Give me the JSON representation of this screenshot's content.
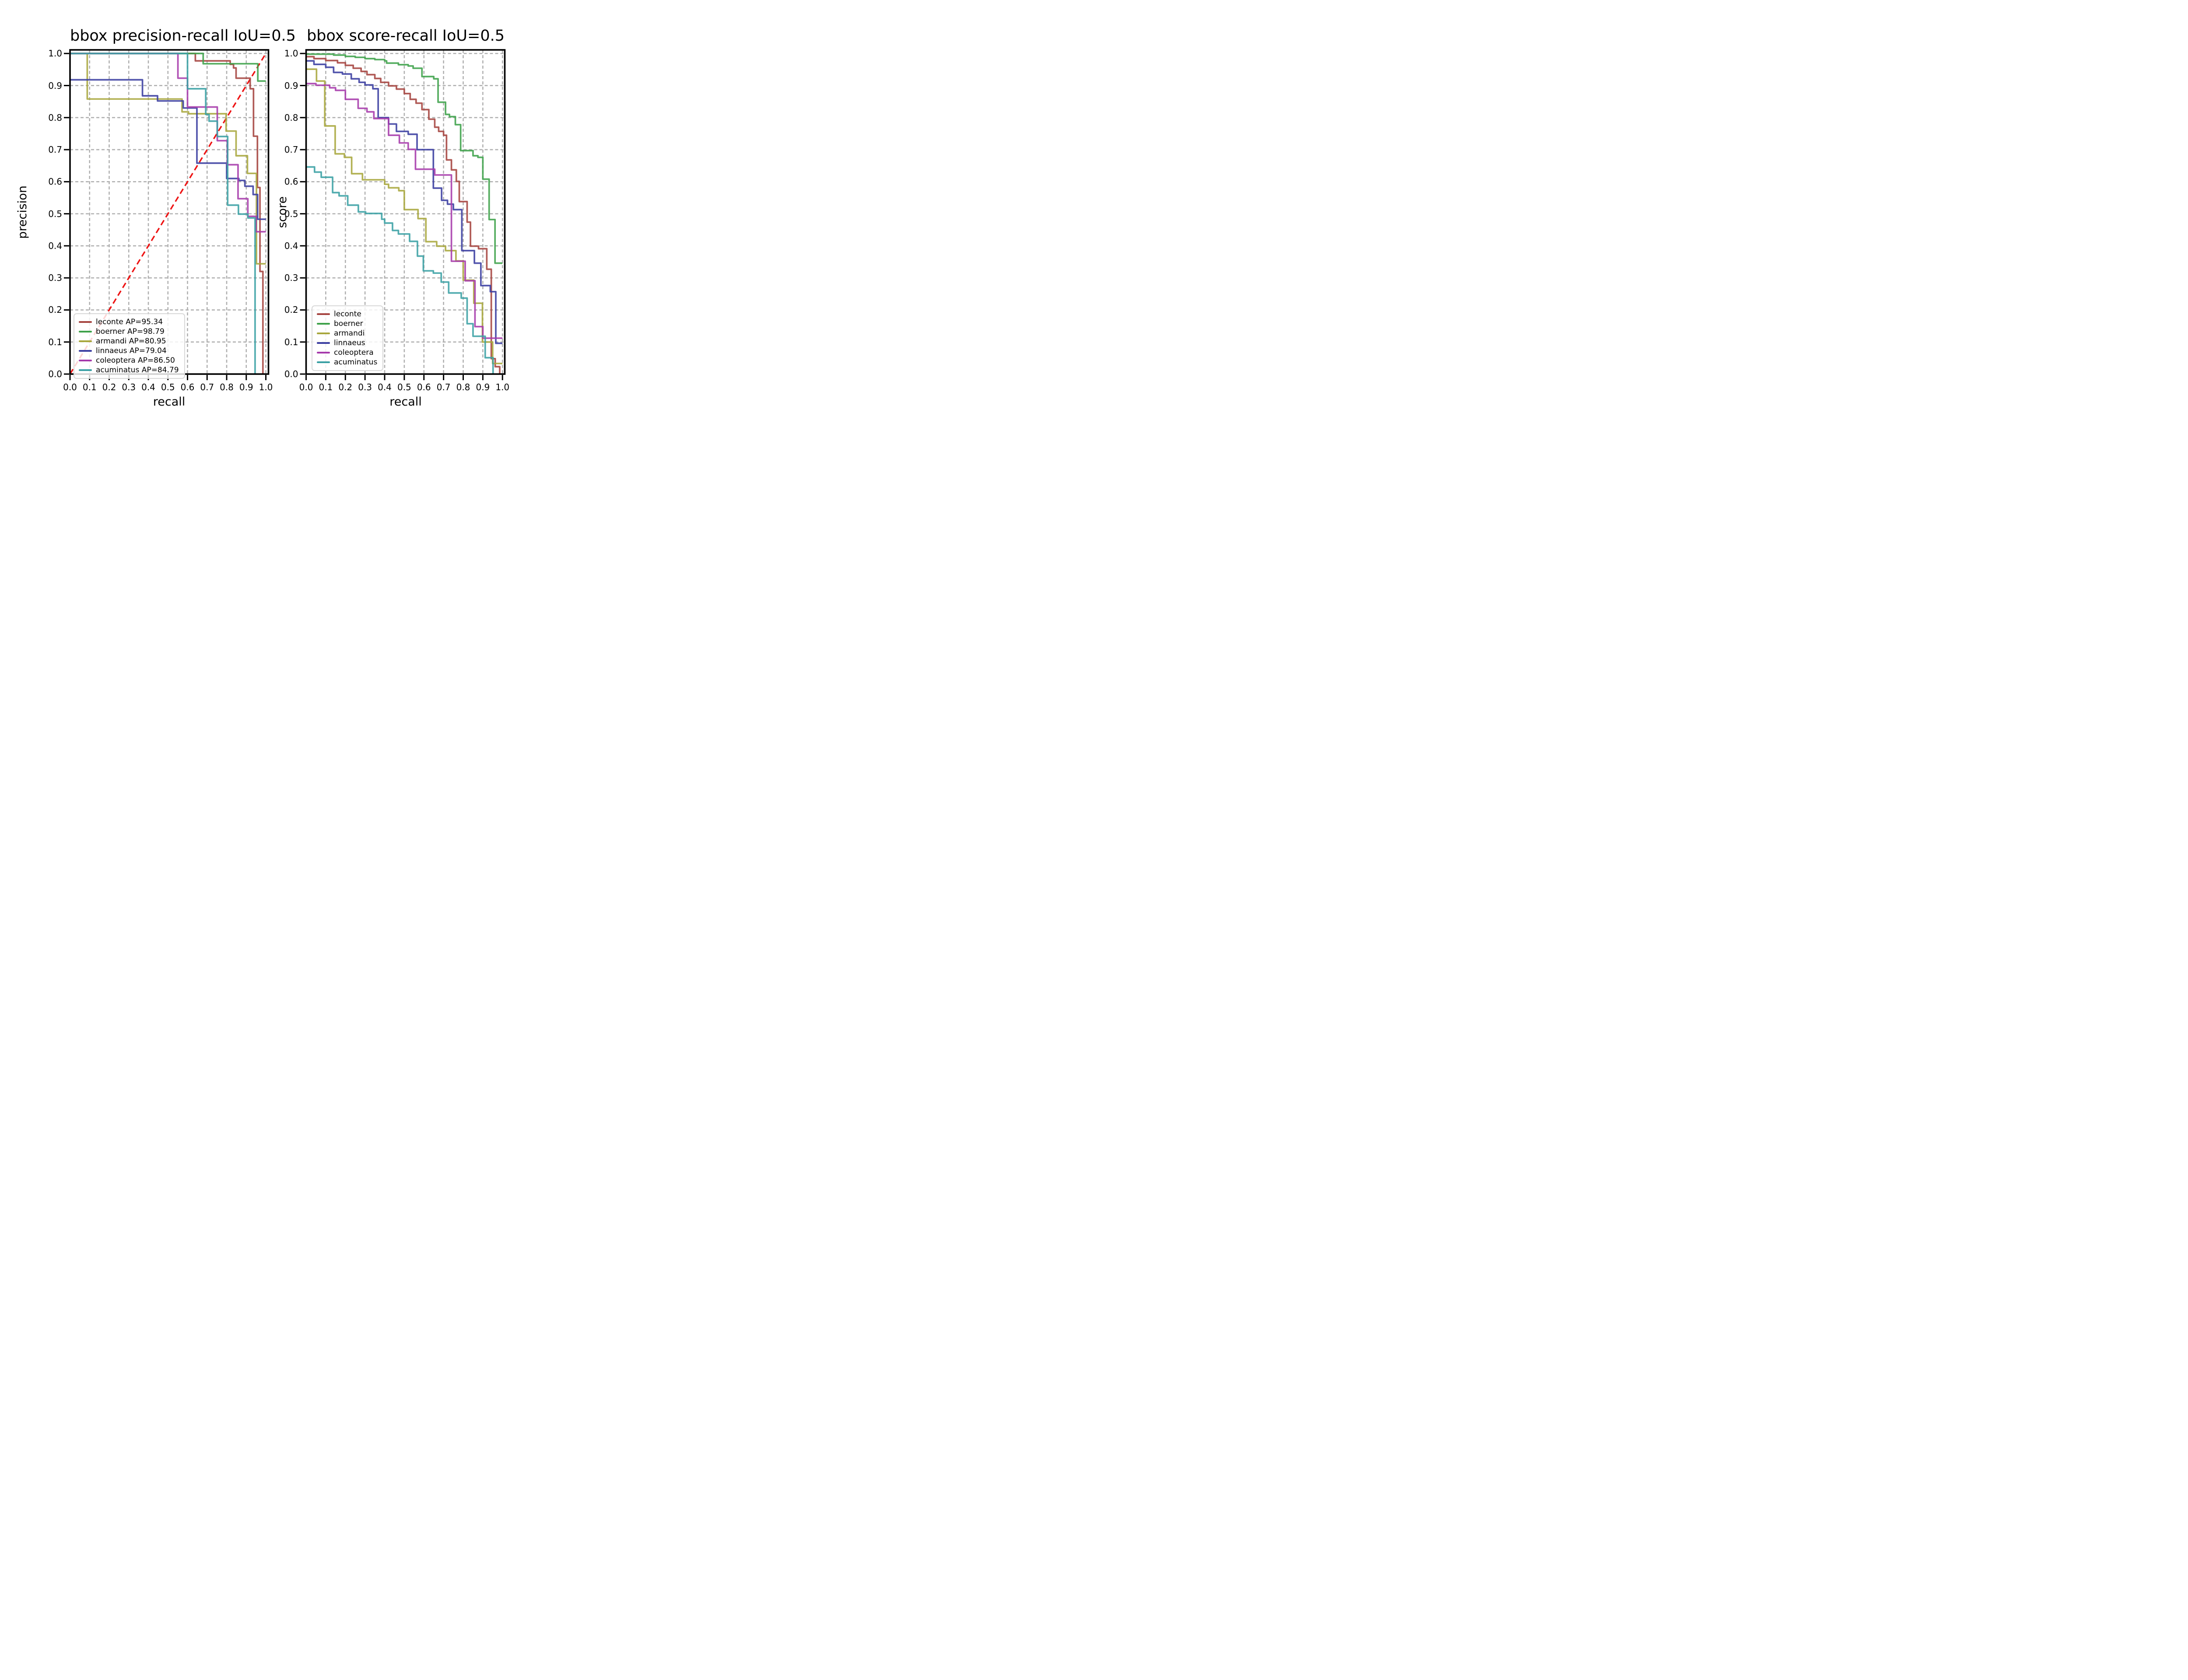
{
  "figure": {
    "background": "#ffffff"
  },
  "colors": {
    "grid": "#b0b0b0",
    "axis": "#000000",
    "diagonal_red": "#ee1414",
    "legend_border": "#d8d8d8"
  },
  "chart_data": [
    {
      "type": "line",
      "title": "bbox precision-recall IoU=0.5",
      "xlabel": "recall",
      "ylabel": "precision",
      "xlim": [
        0,
        1.02
      ],
      "ylim": [
        0,
        1.02
      ],
      "xticks": [
        0.0,
        0.1,
        0.2,
        0.3,
        0.4,
        0.5,
        0.6,
        0.7,
        0.8,
        0.9,
        1.0
      ],
      "yticks": [
        0.0,
        0.1,
        0.2,
        0.3,
        0.4,
        0.5,
        0.6,
        0.7,
        0.8,
        0.9,
        1.0
      ],
      "grid": true,
      "legend_position": "lower left",
      "diagonal": {
        "from": [
          0,
          0
        ],
        "to": [
          1,
          1
        ],
        "color": "#ee1414",
        "style": "dashed"
      },
      "series": [
        {
          "name": "leconte",
          "label": "leconte AP=95.34",
          "ap": 95.34,
          "color": "#a5433f",
          "points": [
            [
              0,
              1.0
            ],
            [
              0.64,
              0.977
            ],
            [
              0.818,
              0.966
            ],
            [
              0.835,
              0.955
            ],
            [
              0.848,
              0.923
            ],
            [
              0.92,
              0.89
            ],
            [
              0.937,
              0.742
            ],
            [
              0.957,
              0.582
            ],
            [
              0.97,
              0.32
            ],
            [
              0.985,
              0.0
            ]
          ]
        },
        {
          "name": "boerner",
          "label": "boerner AP=98.79",
          "ap": 98.79,
          "color": "#3ea24a",
          "points": [
            [
              0,
              1.0
            ],
            [
              0.68,
              0.968
            ],
            [
              0.959,
              0.914
            ],
            [
              1.0,
              0.914
            ]
          ]
        },
        {
          "name": "armandi",
          "label": "armandi AP=80.95",
          "ap": 80.95,
          "color": "#a8a73d",
          "points": [
            [
              0,
              1.0
            ],
            [
              0.088,
              0.858
            ],
            [
              0.572,
              0.818
            ],
            [
              0.605,
              0.812
            ],
            [
              0.797,
              0.758
            ],
            [
              0.848,
              0.681
            ],
            [
              0.906,
              0.626
            ],
            [
              0.952,
              0.344
            ],
            [
              1.0,
              0.344
            ]
          ]
        },
        {
          "name": "linnaeus",
          "label": "linnaeus AP=79.04",
          "ap": 79.04,
          "color": "#3a3da0",
          "points": [
            [
              0,
              0.918
            ],
            [
              0.37,
              0.868
            ],
            [
              0.447,
              0.852
            ],
            [
              0.578,
              0.83
            ],
            [
              0.648,
              0.658
            ],
            [
              0.8,
              0.61
            ],
            [
              0.862,
              0.604
            ],
            [
              0.893,
              0.586
            ],
            [
              0.935,
              0.56
            ],
            [
              0.958,
              0.483
            ],
            [
              1.0,
              0.483
            ]
          ]
        },
        {
          "name": "coleoptera",
          "label": "coleoptera AP=86.50",
          "ap": 86.5,
          "color": "#a63aab",
          "points": [
            [
              0,
              1.0
            ],
            [
              0.551,
              0.923
            ],
            [
              0.6,
              0.833
            ],
            [
              0.752,
              0.728
            ],
            [
              0.803,
              0.653
            ],
            [
              0.858,
              0.547
            ],
            [
              0.908,
              0.492
            ],
            [
              0.95,
              0.444
            ],
            [
              1.0,
              0.444
            ]
          ]
        },
        {
          "name": "acuminatus",
          "label": "acuminatus AP=84.79",
          "ap": 84.79,
          "color": "#3aa0a4",
          "points": [
            [
              0,
              1.0
            ],
            [
              0.6,
              0.89
            ],
            [
              0.693,
              0.81
            ],
            [
              0.71,
              0.789
            ],
            [
              0.752,
              0.741
            ],
            [
              0.805,
              0.527
            ],
            [
              0.86,
              0.499
            ],
            [
              0.908,
              0.487
            ],
            [
              0.945,
              0.0
            ]
          ]
        }
      ]
    },
    {
      "type": "line",
      "title": "bbox score-recall IoU=0.5",
      "xlabel": "recall",
      "ylabel": "score",
      "xlim": [
        0,
        1.02
      ],
      "ylim": [
        0,
        1.02
      ],
      "xticks": [
        0.0,
        0.1,
        0.2,
        0.3,
        0.4,
        0.5,
        0.6,
        0.7,
        0.8,
        0.9,
        1.0
      ],
      "yticks": [
        0.0,
        0.1,
        0.2,
        0.3,
        0.4,
        0.5,
        0.6,
        0.7,
        0.8,
        0.9,
        1.0
      ],
      "grid": true,
      "legend_position": "lower left",
      "series": [
        {
          "name": "leconte",
          "label": "leconte",
          "color": "#a5433f",
          "points": [
            [
              0,
              0.99
            ],
            [
              0.04,
              0.984
            ],
            [
              0.1,
              0.978
            ],
            [
              0.16,
              0.971
            ],
            [
              0.2,
              0.963
            ],
            [
              0.24,
              0.954
            ],
            [
              0.28,
              0.944
            ],
            [
              0.31,
              0.934
            ],
            [
              0.35,
              0.922
            ],
            [
              0.38,
              0.91
            ],
            [
              0.42,
              0.899
            ],
            [
              0.46,
              0.889
            ],
            [
              0.5,
              0.875
            ],
            [
              0.53,
              0.857
            ],
            [
              0.56,
              0.845
            ],
            [
              0.59,
              0.825
            ],
            [
              0.625,
              0.795
            ],
            [
              0.655,
              0.77
            ],
            [
              0.675,
              0.757
            ],
            [
              0.7,
              0.745
            ],
            [
              0.715,
              0.668
            ],
            [
              0.74,
              0.637
            ],
            [
              0.765,
              0.601
            ],
            [
              0.78,
              0.538
            ],
            [
              0.82,
              0.474
            ],
            [
              0.837,
              0.399
            ],
            [
              0.878,
              0.391
            ],
            [
              0.92,
              0.327
            ],
            [
              0.943,
              0.048
            ],
            [
              0.963,
              0.023
            ],
            [
              0.986,
              0.0
            ]
          ]
        },
        {
          "name": "boerner",
          "label": "boerner",
          "color": "#3ea24a",
          "points": [
            [
              0,
              0.998
            ],
            [
              0.14,
              0.995
            ],
            [
              0.2,
              0.991
            ],
            [
              0.25,
              0.988
            ],
            [
              0.3,
              0.984
            ],
            [
              0.35,
              0.981
            ],
            [
              0.4,
              0.977
            ],
            [
              0.41,
              0.97
            ],
            [
              0.47,
              0.965
            ],
            [
              0.52,
              0.961
            ],
            [
              0.545,
              0.954
            ],
            [
              0.59,
              0.928
            ],
            [
              0.65,
              0.921
            ],
            [
              0.672,
              0.848
            ],
            [
              0.71,
              0.81
            ],
            [
              0.73,
              0.803
            ],
            [
              0.76,
              0.778
            ],
            [
              0.787,
              0.697
            ],
            [
              0.85,
              0.681
            ],
            [
              0.875,
              0.676
            ],
            [
              0.9,
              0.608
            ],
            [
              0.932,
              0.482
            ],
            [
              0.962,
              0.346
            ],
            [
              1.0,
              0.346
            ]
          ]
        },
        {
          "name": "armandi",
          "label": "armandi",
          "color": "#a8a73d",
          "points": [
            [
              0,
              0.951
            ],
            [
              0.053,
              0.914
            ],
            [
              0.095,
              0.774
            ],
            [
              0.148,
              0.687
            ],
            [
              0.195,
              0.676
            ],
            [
              0.232,
              0.625
            ],
            [
              0.287,
              0.606
            ],
            [
              0.4,
              0.592
            ],
            [
              0.42,
              0.581
            ],
            [
              0.472,
              0.572
            ],
            [
              0.5,
              0.513
            ],
            [
              0.57,
              0.485
            ],
            [
              0.61,
              0.413
            ],
            [
              0.665,
              0.399
            ],
            [
              0.71,
              0.385
            ],
            [
              0.763,
              0.353
            ],
            [
              0.8,
              0.293
            ],
            [
              0.854,
              0.221
            ],
            [
              0.898,
              0.1
            ],
            [
              0.95,
              0.033
            ],
            [
              1.0,
              0.033
            ]
          ]
        },
        {
          "name": "linnaeus",
          "label": "linnaeus",
          "color": "#3a3da0",
          "points": [
            [
              0,
              0.977
            ],
            [
              0.04,
              0.966
            ],
            [
              0.1,
              0.957
            ],
            [
              0.14,
              0.941
            ],
            [
              0.185,
              0.936
            ],
            [
              0.23,
              0.921
            ],
            [
              0.27,
              0.91
            ],
            [
              0.3,
              0.902
            ],
            [
              0.34,
              0.89
            ],
            [
              0.367,
              0.8
            ],
            [
              0.42,
              0.78
            ],
            [
              0.46,
              0.757
            ],
            [
              0.52,
              0.748
            ],
            [
              0.565,
              0.7
            ],
            [
              0.648,
              0.58
            ],
            [
              0.69,
              0.542
            ],
            [
              0.72,
              0.53
            ],
            [
              0.75,
              0.513
            ],
            [
              0.793,
              0.385
            ],
            [
              0.857,
              0.346
            ],
            [
              0.89,
              0.276
            ],
            [
              0.938,
              0.257
            ],
            [
              0.966,
              0.096
            ],
            [
              1.0,
              0.096
            ]
          ]
        },
        {
          "name": "coleoptera",
          "label": "coleoptera",
          "color": "#a63aab",
          "points": [
            [
              0,
              0.906
            ],
            [
              0.05,
              0.901
            ],
            [
              0.12,
              0.893
            ],
            [
              0.15,
              0.885
            ],
            [
              0.2,
              0.857
            ],
            [
              0.265,
              0.829
            ],
            [
              0.31,
              0.818
            ],
            [
              0.345,
              0.797
            ],
            [
              0.42,
              0.745
            ],
            [
              0.475,
              0.721
            ],
            [
              0.52,
              0.701
            ],
            [
              0.557,
              0.639
            ],
            [
              0.655,
              0.621
            ],
            [
              0.74,
              0.352
            ],
            [
              0.81,
              0.291
            ],
            [
              0.86,
              0.148
            ],
            [
              0.9,
              0.112
            ],
            [
              1.0,
              0.112
            ]
          ]
        },
        {
          "name": "acuminatus",
          "label": "acuminatus",
          "color": "#3aa0a4",
          "points": [
            [
              0,
              0.646
            ],
            [
              0.043,
              0.63
            ],
            [
              0.077,
              0.614
            ],
            [
              0.135,
              0.566
            ],
            [
              0.168,
              0.556
            ],
            [
              0.212,
              0.527
            ],
            [
              0.266,
              0.506
            ],
            [
              0.303,
              0.501
            ],
            [
              0.385,
              0.483
            ],
            [
              0.4,
              0.471
            ],
            [
              0.44,
              0.448
            ],
            [
              0.47,
              0.437
            ],
            [
              0.527,
              0.414
            ],
            [
              0.567,
              0.368
            ],
            [
              0.597,
              0.322
            ],
            [
              0.648,
              0.315
            ],
            [
              0.688,
              0.287
            ],
            [
              0.726,
              0.253
            ],
            [
              0.79,
              0.237
            ],
            [
              0.82,
              0.157
            ],
            [
              0.85,
              0.118
            ],
            [
              0.912,
              0.051
            ],
            [
              0.952,
              0.0
            ]
          ]
        }
      ]
    }
  ]
}
